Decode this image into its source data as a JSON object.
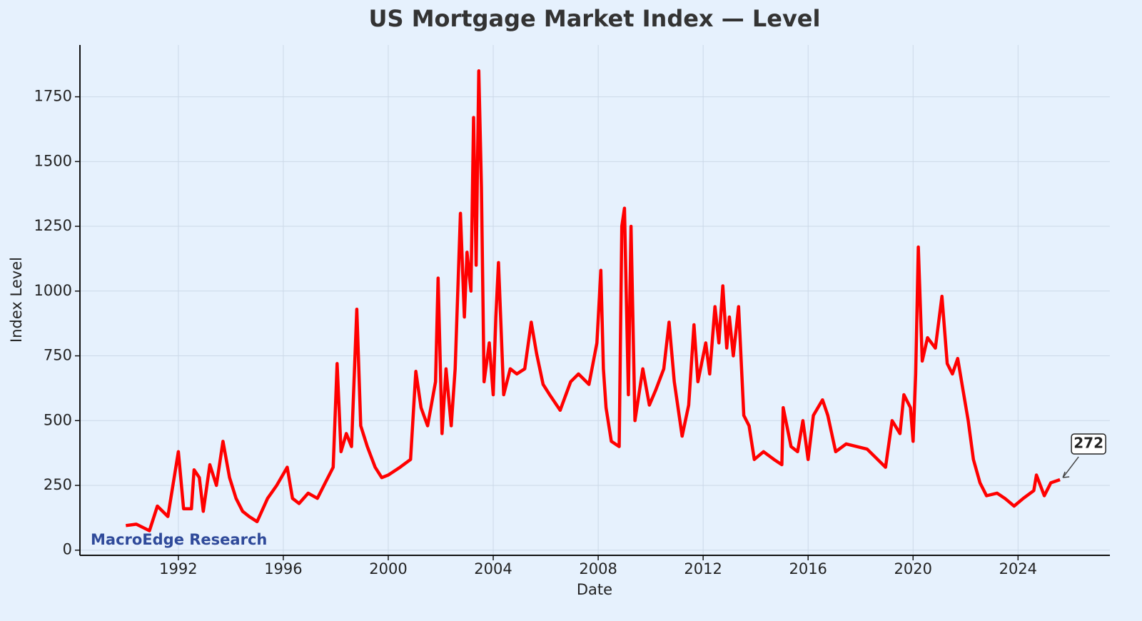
{
  "chart_data": {
    "type": "line",
    "title": "US Mortgage Market Index — Level",
    "x_label": "Date",
    "y_label": "Index Level",
    "watermark": "MacroEdge Research",
    "x": [
      1990.0,
      1990.4,
      1990.9,
      1991.2,
      1991.6,
      1992.0,
      1992.2,
      1992.5,
      1992.6,
      1992.8,
      1992.95,
      1993.2,
      1993.45,
      1993.7,
      1993.95,
      1994.2,
      1994.45,
      1994.7,
      1995.0,
      1995.4,
      1995.75,
      1996.15,
      1996.35,
      1996.6,
      1996.95,
      1997.3,
      1997.6,
      1997.9,
      1998.05,
      1998.2,
      1998.4,
      1998.6,
      1998.8,
      1998.95,
      1999.2,
      1999.5,
      1999.75,
      2000.0,
      2000.45,
      2000.85,
      2001.05,
      2001.25,
      2001.5,
      2001.8,
      2001.9,
      2002.05,
      2002.2,
      2002.4,
      2002.55,
      2002.75,
      2002.9,
      2003.0,
      2003.15,
      2003.25,
      2003.35,
      2003.45,
      2003.55,
      2003.65,
      2003.85,
      2004.0,
      2004.1,
      2004.2,
      2004.4,
      2004.65,
      2004.9,
      2005.2,
      2005.45,
      2005.65,
      2005.9,
      2006.15,
      2006.55,
      2006.95,
      2007.25,
      2007.65,
      2007.95,
      2008.1,
      2008.2,
      2008.3,
      2008.5,
      2008.8,
      2008.9,
      2009.0,
      2009.15,
      2009.25,
      2009.4,
      2009.7,
      2009.95,
      2010.2,
      2010.5,
      2010.7,
      2010.9,
      2011.2,
      2011.45,
      2011.65,
      2011.8,
      2012.1,
      2012.25,
      2012.45,
      2012.6,
      2012.75,
      2012.9,
      2013.0,
      2013.15,
      2013.35,
      2013.55,
      2013.75,
      2013.95,
      2014.3,
      2014.7,
      2015.0,
      2015.05,
      2015.35,
      2015.6,
      2015.8,
      2016.0,
      2016.2,
      2016.55,
      2016.75,
      2017.05,
      2017.45,
      2017.85,
      2018.25,
      2018.65,
      2018.95,
      2019.2,
      2019.5,
      2019.65,
      2019.9,
      2020.0,
      2020.1,
      2020.2,
      2020.35,
      2020.55,
      2020.85,
      2021.1,
      2021.3,
      2021.5,
      2021.7,
      2021.9,
      2022.1,
      2022.3,
      2022.55,
      2022.8,
      2023.2,
      2023.5,
      2023.85,
      2024.2,
      2024.6,
      2024.7,
      2025.0,
      2025.25,
      2025.6
    ],
    "series": [
      {
        "name": "Index Level",
        "color": "#ff0000",
        "values": [
          95,
          100,
          75,
          170,
          130,
          380,
          160,
          160,
          310,
          280,
          150,
          330,
          250,
          420,
          280,
          200,
          150,
          130,
          110,
          200,
          250,
          320,
          200,
          180,
          220,
          200,
          260,
          320,
          720,
          380,
          450,
          400,
          930,
          480,
          400,
          320,
          280,
          290,
          320,
          350,
          690,
          550,
          480,
          650,
          1050,
          450,
          700,
          480,
          700,
          1300,
          900,
          1150,
          1000,
          1670,
          1100,
          1850,
          1400,
          650,
          800,
          600,
          900,
          1110,
          600,
          700,
          680,
          700,
          880,
          760,
          640,
          600,
          540,
          650,
          680,
          640,
          800,
          1080,
          700,
          550,
          420,
          400,
          1250,
          1320,
          600,
          1250,
          500,
          700,
          560,
          620,
          700,
          880,
          650,
          440,
          560,
          870,
          650,
          800,
          680,
          940,
          800,
          1020,
          780,
          900,
          750,
          940,
          520,
          480,
          350,
          380,
          350,
          330,
          550,
          400,
          380,
          500,
          350,
          520,
          580,
          520,
          380,
          410,
          400,
          390,
          350,
          320,
          500,
          450,
          600,
          550,
          420,
          680,
          1170,
          730,
          820,
          780,
          980,
          720,
          680,
          740,
          620,
          500,
          350,
          260,
          210,
          220,
          200,
          170,
          200,
          230,
          290,
          210,
          260,
          272
        ]
      }
    ],
    "annotations": [
      {
        "text": "272",
        "x": 2025.6,
        "y": 272
      }
    ],
    "xlim": [
      1988.25,
      2027.5
    ],
    "xticks": [
      1992,
      1996,
      2000,
      2004,
      2008,
      2012,
      2016,
      2020,
      2024
    ],
    "ylim": [
      -20,
      1950
    ],
    "yticks": [
      0,
      250,
      500,
      750,
      1000,
      1250,
      1500,
      1750
    ],
    "grid": true
  }
}
